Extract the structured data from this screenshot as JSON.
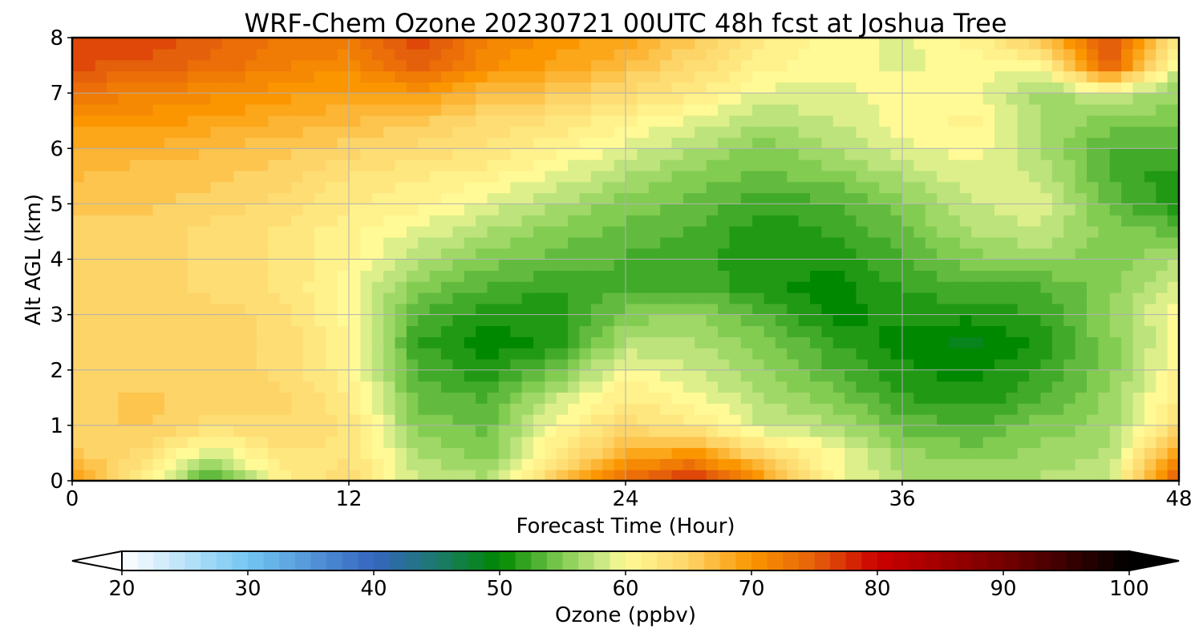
{
  "chart_data": {
    "type": "heatmap",
    "title": "WRF-Chem Ozone  20230721 00UTC 48h fcst at Joshua Tree",
    "xlabel": "Forecast Time (Hour)",
    "ylabel": "Alt AGL (km)",
    "xlim": [
      0,
      48
    ],
    "ylim": [
      0,
      8
    ],
    "x_ticks": [
      0,
      12,
      24,
      36,
      48
    ],
    "y_ticks": [
      0,
      1,
      2,
      3,
      4,
      5,
      6,
      7,
      8
    ],
    "grid": true,
    "x": [
      0,
      3,
      6,
      9,
      12,
      15,
      18,
      21,
      24,
      27,
      30,
      33,
      36,
      39,
      42,
      45,
      48
    ],
    "y": [
      0,
      0.5,
      1,
      1.5,
      2,
      2.5,
      3,
      3.5,
      4,
      4.5,
      5,
      5.5,
      6,
      6.5,
      7,
      7.5,
      8
    ],
    "z": [
      [
        70,
        62,
        52,
        61,
        64,
        58,
        57,
        66,
        74,
        79,
        70,
        60,
        57,
        57,
        57,
        58,
        76
      ],
      [
        66,
        64,
        58,
        63,
        63,
        57,
        55,
        62,
        68,
        70,
        64,
        60,
        56,
        55,
        56,
        57,
        70
      ],
      [
        65,
        66,
        64,
        64,
        63,
        55,
        54,
        60,
        64,
        62,
        58,
        57,
        54,
        53,
        55,
        56,
        64
      ],
      [
        65,
        66,
        65,
        65,
        62,
        54,
        53,
        58,
        62,
        60,
        57,
        55,
        52,
        51,
        53,
        56,
        62
      ],
      [
        65,
        65,
        65,
        64,
        61,
        53,
        51,
        54,
        60,
        58,
        56,
        53,
        51,
        50,
        52,
        55,
        61
      ],
      [
        65,
        65,
        65,
        64,
        61,
        52,
        50,
        51,
        57,
        57,
        55,
        52,
        50,
        49,
        51,
        55,
        60
      ],
      [
        65,
        65,
        65,
        64,
        60,
        53,
        51,
        51,
        55,
        56,
        53,
        50,
        51,
        51,
        52,
        56,
        60
      ],
      [
        65,
        65,
        64,
        63,
        60,
        55,
        53,
        52,
        53,
        53,
        51,
        50,
        52,
        53,
        53,
        55,
        59
      ],
      [
        65,
        65,
        64,
        63,
        61,
        57,
        55,
        54,
        53,
        52,
        51,
        51,
        53,
        55,
        56,
        55,
        57
      ],
      [
        65,
        65,
        64,
        63,
        61,
        59,
        57,
        55,
        54,
        53,
        51,
        52,
        54,
        57,
        58,
        55,
        54
      ],
      [
        66,
        66,
        65,
        64,
        62,
        61,
        59,
        57,
        55,
        54,
        52,
        53,
        55,
        58,
        59,
        54,
        51
      ],
      [
        67,
        66,
        66,
        65,
        63,
        62,
        61,
        59,
        57,
        55,
        54,
        55,
        57,
        59,
        58,
        53,
        51
      ],
      [
        68,
        68,
        67,
        66,
        65,
        64,
        63,
        61,
        59,
        57,
        55,
        57,
        59,
        60,
        57,
        53,
        53
      ],
      [
        70,
        70,
        69,
        68,
        67,
        66,
        64,
        63,
        61,
        59,
        57,
        58,
        60,
        61,
        57,
        55,
        55
      ],
      [
        73,
        72,
        71,
        70,
        69,
        70,
        67,
        66,
        64,
        62,
        59,
        59,
        60,
        60,
        56,
        58,
        56
      ],
      [
        76,
        75,
        74,
        72,
        71,
        75,
        71,
        69,
        67,
        64,
        61,
        60,
        59,
        60,
        60,
        75,
        58
      ],
      [
        77,
        77,
        75,
        73,
        73,
        77,
        72,
        70,
        69,
        66,
        62,
        60,
        59,
        61,
        66,
        77,
        62
      ]
    ],
    "colorbar": {
      "label": "Ozone  (ppbv)",
      "min": 20,
      "max": 100,
      "ticks": [
        20,
        30,
        40,
        50,
        60,
        70,
        80,
        90,
        100
      ],
      "extend": "both",
      "stops": [
        {
          "v": 20,
          "color": "#ffffff"
        },
        {
          "v": 30,
          "color": "#73c6f2"
        },
        {
          "v": 40,
          "color": "#3565c0"
        },
        {
          "v": 45,
          "color": "#1d7a6e"
        },
        {
          "v": 50,
          "color": "#008800"
        },
        {
          "v": 55,
          "color": "#82cc52"
        },
        {
          "v": 58,
          "color": "#c8e884"
        },
        {
          "v": 60,
          "color": "#fffa96"
        },
        {
          "v": 65,
          "color": "#fdd468"
        },
        {
          "v": 70,
          "color": "#fb9600"
        },
        {
          "v": 75,
          "color": "#e5600a"
        },
        {
          "v": 80,
          "color": "#cc0000"
        },
        {
          "v": 90,
          "color": "#750000"
        },
        {
          "v": 100,
          "color": "#000000"
        }
      ]
    }
  }
}
